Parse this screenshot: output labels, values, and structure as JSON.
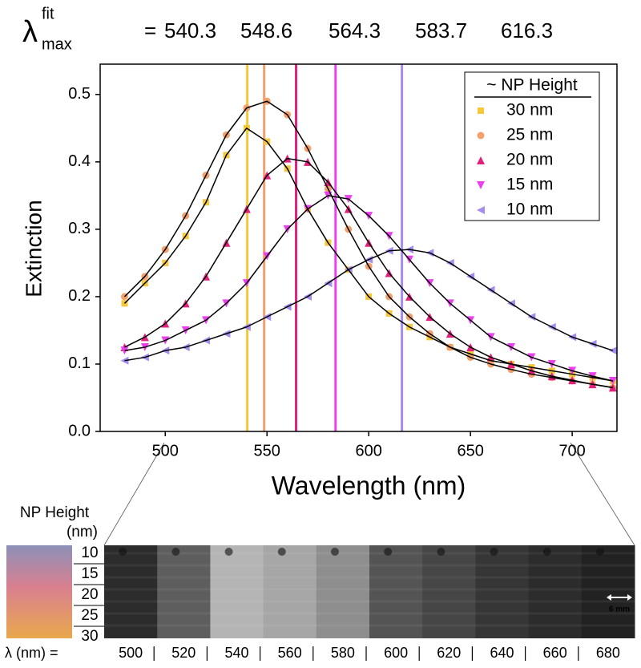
{
  "chart_data": {
    "type": "scatter",
    "header": {
      "symbol": "λ",
      "superscript": "fit",
      "subscript": "max",
      "equals": "="
    },
    "xlabel": "Wavelength (nm)",
    "ylabel": "Extinction",
    "x": [
      480,
      490,
      500,
      510,
      520,
      530,
      540,
      550,
      560,
      570,
      580,
      590,
      600,
      610,
      620,
      630,
      640,
      650,
      660,
      670,
      680,
      690,
      700,
      710,
      720
    ],
    "series": [
      {
        "name": "30 nm",
        "color": "#f5c83a",
        "marker": "square",
        "values": [
          0.19,
          0.22,
          0.25,
          0.29,
          0.34,
          0.41,
          0.45,
          0.43,
          0.39,
          0.33,
          0.28,
          0.24,
          0.2,
          0.175,
          0.155,
          0.14,
          0.125,
          0.115,
          0.105,
          0.1,
          0.095,
          0.09,
          0.085,
          0.08,
          0.075
        ]
      },
      {
        "name": "25 nm",
        "color": "#f2a06c",
        "marker": "circle",
        "values": [
          0.2,
          0.23,
          0.27,
          0.32,
          0.38,
          0.44,
          0.48,
          0.49,
          0.47,
          0.42,
          0.36,
          0.3,
          0.245,
          0.2,
          0.17,
          0.145,
          0.125,
          0.11,
          0.1,
          0.092,
          0.085,
          0.08,
          0.075,
          0.07,
          0.065
        ]
      },
      {
        "name": "20 nm",
        "color": "#e4207e",
        "marker": "triangle-up",
        "values": [
          0.125,
          0.14,
          0.16,
          0.19,
          0.23,
          0.28,
          0.33,
          0.38,
          0.405,
          0.4,
          0.37,
          0.33,
          0.28,
          0.235,
          0.2,
          0.17,
          0.145,
          0.125,
          0.11,
          0.1,
          0.09,
          0.082,
          0.076,
          0.07,
          0.065
        ]
      },
      {
        "name": "15 nm",
        "color": "#ec40ee",
        "marker": "triangle-down",
        "values": [
          0.12,
          0.125,
          0.135,
          0.15,
          0.165,
          0.19,
          0.22,
          0.26,
          0.3,
          0.33,
          0.35,
          0.345,
          0.32,
          0.29,
          0.255,
          0.22,
          0.19,
          0.165,
          0.14,
          0.125,
          0.11,
          0.1,
          0.09,
          0.082,
          0.075
        ]
      },
      {
        "name": "10 nm",
        "color": "#a48cf0",
        "marker": "triangle-left",
        "values": [
          0.105,
          0.11,
          0.12,
          0.125,
          0.135,
          0.145,
          0.155,
          0.17,
          0.185,
          0.2,
          0.22,
          0.24,
          0.255,
          0.268,
          0.27,
          0.265,
          0.25,
          0.23,
          0.21,
          0.19,
          0.17,
          0.155,
          0.14,
          0.13,
          0.12
        ]
      }
    ],
    "fit_color": "#000000",
    "vlines": [
      {
        "value": 540.3,
        "color": "#f5c83a"
      },
      {
        "value": 548.6,
        "color": "#f2a06c"
      },
      {
        "value": 564.3,
        "color": "#e4207e"
      },
      {
        "value": 583.7,
        "color": "#ec40ee"
      },
      {
        "value": 616.3,
        "color": "#a48cf0"
      }
    ],
    "xlim": [
      468,
      722
    ],
    "xticks": [
      500,
      550,
      600,
      650,
      700
    ],
    "ylim": [
      0,
      0.545
    ],
    "yticks": [
      {
        "value": 0,
        "label": "0.0"
      },
      0.1,
      0.2,
      0.3,
      0.4,
      0.5
    ],
    "legend": {
      "title": "~ NP Height",
      "position": "upper right"
    },
    "strip": {
      "height_label": "NP Height",
      "height_unit": "(nm)",
      "heights": [
        10,
        15,
        20,
        25,
        30
      ],
      "wavelength_label": "λ  (nm) =",
      "wavelengths": [
        500,
        520,
        540,
        560,
        580,
        600,
        620,
        640,
        660,
        680
      ],
      "tile_colors": [
        "#2c2c2c",
        "#5e5e5e",
        "#b4b4b4",
        "#a6a6a6",
        "#8e8e8e",
        "#545454",
        "#464646",
        "#363636",
        "#2c2c2c",
        "#222222"
      ],
      "scale_bar": "6 mm"
    }
  }
}
